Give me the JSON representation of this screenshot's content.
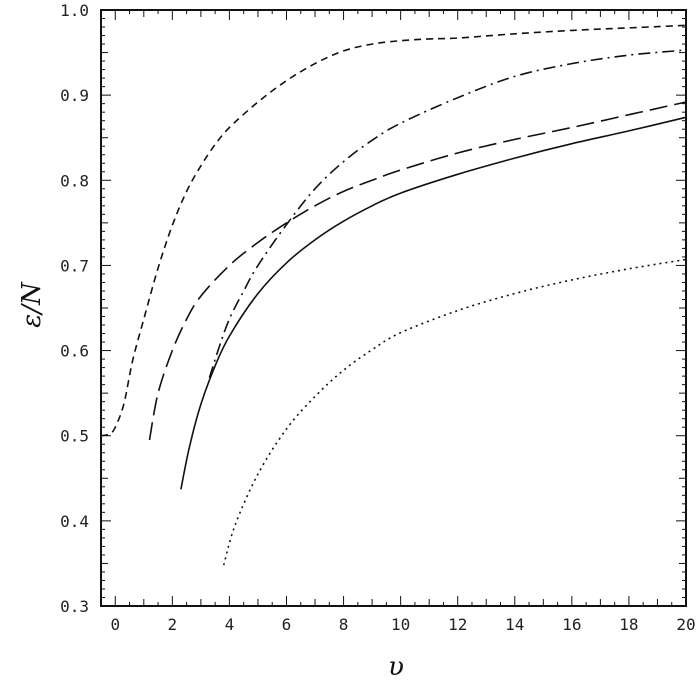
{
  "chart_data": {
    "type": "line",
    "title": "",
    "xlabel": "υ",
    "ylabel": "ε/N",
    "xlim": [
      -0.5,
      20
    ],
    "ylim": [
      0.3,
      1.0
    ],
    "grid": false,
    "legend": "none",
    "x_ticks": [
      "0",
      "2",
      "4",
      "6",
      "8",
      "10",
      "12",
      "14",
      "16",
      "18",
      "20"
    ],
    "y_ticks": [
      "0.3",
      "0.4",
      "0.5",
      "0.6",
      "0.7",
      "0.8",
      "0.9",
      "1.0"
    ],
    "series": [
      {
        "style": "solid",
        "points": [
          [
            2.3,
            0.437
          ],
          [
            2.6,
            0.487
          ],
          [
            3,
            0.537
          ],
          [
            3.5,
            0.582
          ],
          [
            4,
            0.617
          ],
          [
            5,
            0.667
          ],
          [
            6,
            0.703
          ],
          [
            7,
            0.73
          ],
          [
            8,
            0.752
          ],
          [
            9,
            0.77
          ],
          [
            10,
            0.785
          ],
          [
            12,
            0.807
          ],
          [
            14,
            0.826
          ],
          [
            16,
            0.843
          ],
          [
            18,
            0.858
          ],
          [
            20,
            0.874
          ]
        ]
      },
      {
        "style": "short-dash",
        "points": [
          [
            -0.5,
            0.5
          ],
          [
            -0.2,
            0.502
          ],
          [
            0,
            0.51
          ],
          [
            0.3,
            0.537
          ],
          [
            0.6,
            0.587
          ],
          [
            1,
            0.637
          ],
          [
            1.5,
            0.697
          ],
          [
            2,
            0.747
          ],
          [
            2.5,
            0.787
          ],
          [
            3,
            0.817
          ],
          [
            3.5,
            0.842
          ],
          [
            4,
            0.862
          ],
          [
            5,
            0.892
          ],
          [
            6,
            0.917
          ],
          [
            7,
            0.937
          ],
          [
            8,
            0.952
          ],
          [
            9,
            0.96
          ],
          [
            10,
            0.964
          ],
          [
            11,
            0.966
          ],
          [
            12,
            0.967
          ],
          [
            14,
            0.972
          ],
          [
            16,
            0.976
          ],
          [
            18,
            0.979
          ],
          [
            20,
            0.982
          ]
        ]
      },
      {
        "style": "long-dash",
        "points": [
          [
            1.2,
            0.495
          ],
          [
            1.5,
            0.55
          ],
          [
            2,
            0.6
          ],
          [
            2.5,
            0.637
          ],
          [
            3,
            0.664
          ],
          [
            4,
            0.7
          ],
          [
            5,
            0.727
          ],
          [
            6,
            0.75
          ],
          [
            7,
            0.77
          ],
          [
            8,
            0.787
          ],
          [
            9,
            0.8
          ],
          [
            10,
            0.812
          ],
          [
            12,
            0.832
          ],
          [
            14,
            0.848
          ],
          [
            16,
            0.862
          ],
          [
            18,
            0.877
          ],
          [
            20,
            0.892
          ]
        ]
      },
      {
        "style": "dash-dot",
        "points": [
          [
            3.3,
            0.568
          ],
          [
            3.6,
            0.6
          ],
          [
            4,
            0.637
          ],
          [
            4.5,
            0.67
          ],
          [
            5,
            0.7
          ],
          [
            6,
            0.748
          ],
          [
            7,
            0.79
          ],
          [
            8,
            0.822
          ],
          [
            9,
            0.847
          ],
          [
            10,
            0.867
          ],
          [
            12,
            0.897
          ],
          [
            14,
            0.922
          ],
          [
            16,
            0.937
          ],
          [
            18,
            0.947
          ],
          [
            20,
            0.953
          ]
        ]
      },
      {
        "style": "dotted",
        "points": [
          [
            3.8,
            0.348
          ],
          [
            4.2,
            0.395
          ],
          [
            5,
            0.455
          ],
          [
            6,
            0.508
          ],
          [
            7,
            0.546
          ],
          [
            8,
            0.577
          ],
          [
            9,
            0.601
          ],
          [
            10,
            0.621
          ],
          [
            12,
            0.647
          ],
          [
            14,
            0.667
          ],
          [
            16,
            0.683
          ],
          [
            18,
            0.696
          ],
          [
            20,
            0.707
          ]
        ]
      }
    ]
  }
}
